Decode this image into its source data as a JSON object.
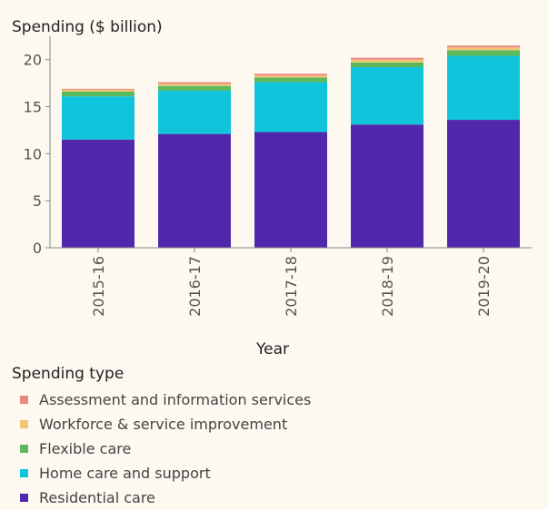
{
  "chart_data": {
    "type": "bar",
    "stacked": true,
    "title": "Spending ($ billion)",
    "xlabel": "Year",
    "ylabel": "",
    "ylim": [
      0,
      22
    ],
    "yticks": [
      0,
      5,
      10,
      15,
      20
    ],
    "grid": false,
    "categories": [
      "2015-16",
      "2016-17",
      "2017-18",
      "2018-19",
      "2019-20"
    ],
    "legend_title": "Spending type",
    "legend_position": "bottom",
    "series": [
      {
        "name": "Residential care",
        "color": "#5128ab",
        "values": [
          11.5,
          12.1,
          12.3,
          13.1,
          13.6
        ]
      },
      {
        "name": "Home care and support",
        "color": "#10c4dc",
        "values": [
          4.6,
          4.6,
          5.3,
          6.1,
          6.8
        ]
      },
      {
        "name": "Flexible care",
        "color": "#5cb85c",
        "values": [
          0.5,
          0.5,
          0.5,
          0.5,
          0.6
        ]
      },
      {
        "name": "Workforce & service improvement",
        "color": "#f0c674",
        "values": [
          0.2,
          0.2,
          0.2,
          0.3,
          0.3
        ]
      },
      {
        "name": "Assessment and information services",
        "color": "#e88a80",
        "values": [
          0.1,
          0.2,
          0.2,
          0.2,
          0.2
        ]
      }
    ],
    "legend_order": [
      "Assessment and information services",
      "Workforce & service improvement",
      "Flexible care",
      "Home care and support",
      "Residential care"
    ]
  }
}
